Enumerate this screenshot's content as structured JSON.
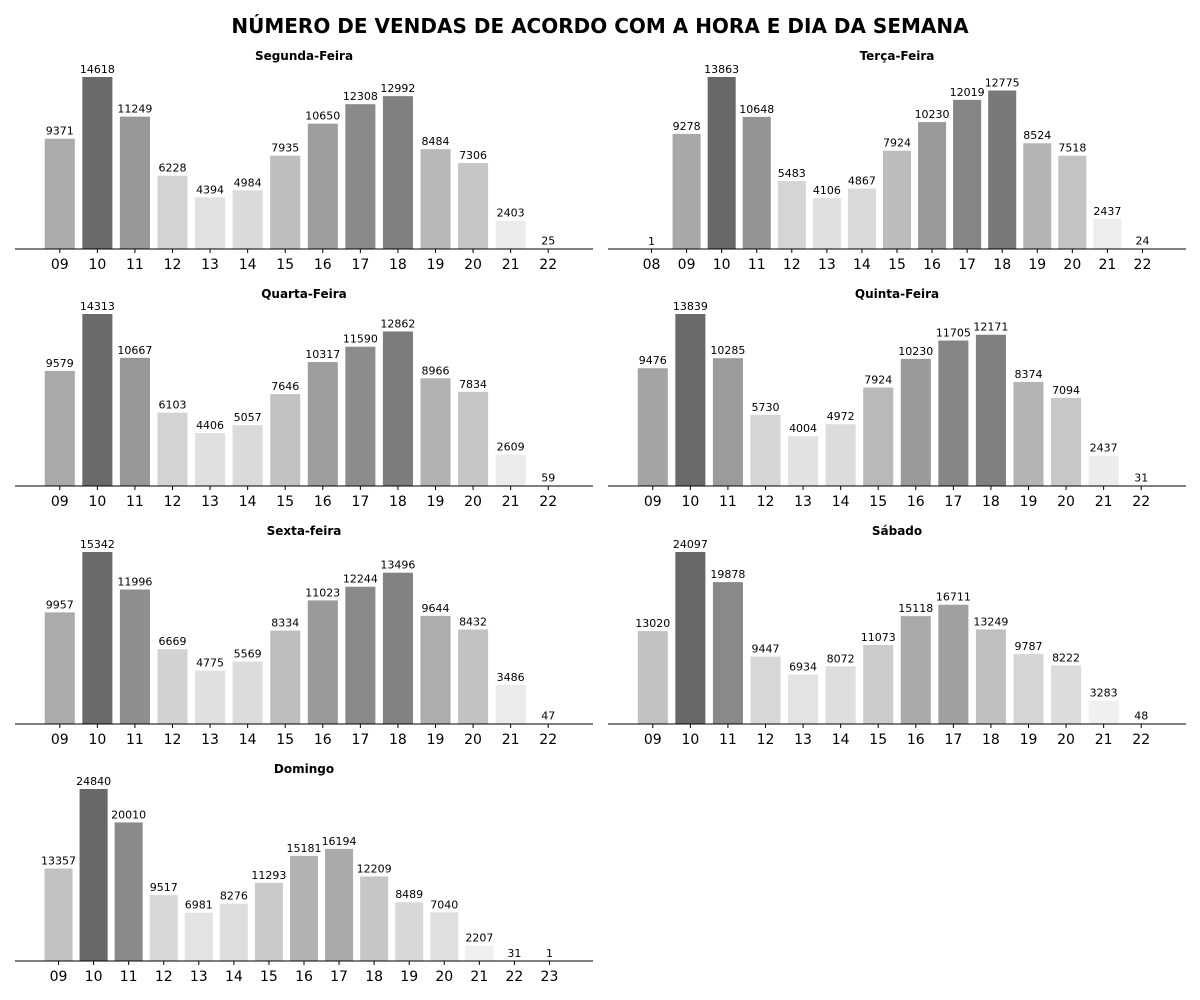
{
  "title": "NÚMERO DE VENDAS DE ACORDO COM A HORA E DIA DA SEMANA",
  "chart_data": [
    {
      "type": "bar",
      "title": "Segunda-Feira",
      "categories": [
        "09",
        "10",
        "11",
        "12",
        "13",
        "14",
        "15",
        "16",
        "17",
        "18",
        "19",
        "20",
        "21",
        "22"
      ],
      "values": [
        9371,
        14618,
        11249,
        6228,
        4394,
        4984,
        7935,
        10650,
        12308,
        12992,
        8484,
        7306,
        2403,
        25
      ],
      "colors": [
        "#ababab",
        "#6a6a6a",
        "#979797",
        "#d3d3d3",
        "#e1e1e1",
        "#dadada",
        "#bebebe",
        "#9e9e9e",
        "#8a8a8a",
        "#808080",
        "#b8b8b8",
        "#c6c6c6",
        "#ececec",
        "#f7f7f7"
      ]
    },
    {
      "type": "bar",
      "title": "Terça-Feira",
      "categories": [
        "08",
        "09",
        "10",
        "11",
        "12",
        "13",
        "14",
        "15",
        "16",
        "17",
        "18",
        "19",
        "20",
        "21",
        "22"
      ],
      "values": [
        1,
        9278,
        13863,
        10648,
        5483,
        4106,
        4867,
        7924,
        10230,
        12019,
        12775,
        8524,
        7518,
        2437,
        24
      ],
      "colors": [
        "#f7f7f7",
        "#a8a8a8",
        "#686868",
        "#939393",
        "#d5d5d5",
        "#e0e0e0",
        "#d9d9d9",
        "#bcbcbc",
        "#999999",
        "#858585",
        "#797979",
        "#b4b4b4",
        "#c3c3c3",
        "#ededed",
        "#f7f7f7"
      ]
    },
    {
      "type": "bar",
      "title": "Quarta-Feira",
      "categories": [
        "09",
        "10",
        "11",
        "12",
        "13",
        "14",
        "15",
        "16",
        "17",
        "18",
        "19",
        "20",
        "21",
        "22"
      ],
      "values": [
        9579,
        14313,
        10667,
        6103,
        4406,
        5057,
        7646,
        10317,
        11590,
        12862,
        8966,
        7834,
        2609,
        59
      ],
      "colors": [
        "#a9a9a9",
        "#6a6a6a",
        "#979797",
        "#d3d3d3",
        "#e0e0e0",
        "#dadada",
        "#c2c2c2",
        "#9e9e9e",
        "#8c8c8c",
        "#7c7c7c",
        "#b2b2b2",
        "#c6c6c6",
        "#ebebeb",
        "#f7f7f7"
      ]
    },
    {
      "type": "bar",
      "title": "Quinta-Feira",
      "categories": [
        "09",
        "10",
        "11",
        "12",
        "13",
        "14",
        "15",
        "16",
        "17",
        "18",
        "19",
        "20",
        "21",
        "22"
      ],
      "values": [
        9476,
        13839,
        10285,
        5730,
        4004,
        4972,
        7924,
        10230,
        11705,
        12171,
        8374,
        7094,
        2437,
        31
      ],
      "colors": [
        "#a4a4a4",
        "#6a6a6a",
        "#9b9b9b",
        "#d5d5d5",
        "#e2e2e2",
        "#dcdcdc",
        "#b9b9b9",
        "#9a9a9a",
        "#868686",
        "#808080",
        "#b4b4b4",
        "#c7c7c7",
        "#ececec",
        "#f7f7f7"
      ]
    },
    {
      "type": "bar",
      "title": "Sexta-feira",
      "categories": [
        "09",
        "10",
        "11",
        "12",
        "13",
        "14",
        "15",
        "16",
        "17",
        "18",
        "19",
        "20",
        "21",
        "22"
      ],
      "values": [
        9957,
        15342,
        11996,
        6669,
        4775,
        5569,
        8334,
        11023,
        12244,
        13496,
        9644,
        8432,
        3486,
        47
      ],
      "colors": [
        "#ababab",
        "#6a6a6a",
        "#8e8e8e",
        "#d2d2d2",
        "#e0e0e0",
        "#dcdcdc",
        "#bdbdbd",
        "#9a9a9a",
        "#898989",
        "#828282",
        "#adadad",
        "#c2c2c2",
        "#ebebeb",
        "#f7f7f7"
      ]
    },
    {
      "type": "bar",
      "title": "Sábado",
      "categories": [
        "09",
        "10",
        "11",
        "12",
        "13",
        "14",
        "15",
        "16",
        "17",
        "18",
        "19",
        "20",
        "21",
        "22"
      ],
      "values": [
        13020,
        24097,
        19878,
        9447,
        6934,
        8072,
        11073,
        15118,
        16711,
        13249,
        9787,
        8222,
        3283,
        48
      ],
      "colors": [
        "#c1c1c1",
        "#686868",
        "#898989",
        "#d7d7d7",
        "#e3e3e3",
        "#dedede",
        "#cccccc",
        "#aaaaaa",
        "#a0a0a0",
        "#bfbfbf",
        "#d5d5d5",
        "#dcdcdc",
        "#f0f0f0",
        "#f7f7f7"
      ]
    },
    {
      "type": "bar",
      "title": "Domingo",
      "categories": [
        "09",
        "10",
        "11",
        "12",
        "13",
        "14",
        "15",
        "16",
        "17",
        "18",
        "19",
        "20",
        "21",
        "22",
        "23"
      ],
      "values": [
        13357,
        24840,
        20010,
        9517,
        6981,
        8276,
        11293,
        15181,
        16194,
        12209,
        8489,
        7040,
        2207,
        31,
        1
      ],
      "colors": [
        "#c2c2c2",
        "#686868",
        "#8a8a8a",
        "#d8d8d8",
        "#e3e3e3",
        "#dedede",
        "#cacaca",
        "#b2b2b2",
        "#aaaaaa",
        "#c6c6c6",
        "#d8d8d8",
        "#e0e0e0",
        "#f0f0f0",
        "#f7f7f7",
        "#f7f7f7"
      ]
    }
  ]
}
